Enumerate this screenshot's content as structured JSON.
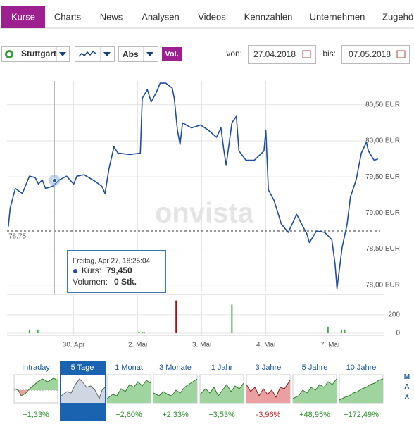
{
  "tabs": [
    "Kurse",
    "Charts",
    "News",
    "Analysen",
    "Videos",
    "Kennzahlen",
    "Unternehmen",
    "Zugehö"
  ],
  "toolbar": {
    "exchange": "Stuttgart",
    "scale": "Abs",
    "volume": "Vol.",
    "from_label": "von:",
    "from_date": "27.04.2018",
    "to_label": "bis:",
    "to_date": "07.05.2018"
  },
  "watermark": "onvista",
  "tooltip": {
    "time": "Freitag, Apr 27, 18:25:04",
    "price_label": "Kurs:",
    "price": {
      "value": 79.45,
      "label": "79,450"
    },
    "volume_label": "Volumen:",
    "volume": "0 Stk.",
    "x": 0.7
  },
  "chart_data": [
    {
      "type": "line",
      "color": "#1f4e9c",
      "x": [
        -0.02,
        0.01,
        0.09,
        0.2,
        0.31,
        0.4,
        0.45,
        0.51,
        0.56,
        0.67,
        0.78,
        0.89,
        1.0,
        1.05,
        1.16,
        1.33,
        1.44,
        1.49,
        1.55,
        1.63,
        1.69,
        1.88,
        2.04,
        2.07,
        2.15,
        2.21,
        2.29,
        2.35,
        2.44,
        2.54,
        2.57,
        2.62,
        2.66,
        2.7,
        2.84,
        2.98,
        3.1,
        3.23,
        3.3,
        3.34,
        3.38,
        3.47,
        3.54,
        3.58,
        3.69,
        3.82,
        3.97,
        4.0,
        4.04,
        4.13,
        4.24,
        4.35,
        4.48,
        4.64,
        4.68,
        4.79,
        4.92,
        5.03,
        5.08,
        5.11,
        5.19,
        5.27,
        5.32,
        5.41,
        5.49,
        5.57,
        5.6,
        5.69,
        5.75
      ],
      "values": [
        78.81,
        79.07,
        79.34,
        79.27,
        79.51,
        79.49,
        79.4,
        79.46,
        79.34,
        79.37,
        79.46,
        79.51,
        79.4,
        79.51,
        79.53,
        79.44,
        79.37,
        79.27,
        79.61,
        79.92,
        79.83,
        79.81,
        79.83,
        80.59,
        80.71,
        80.54,
        80.67,
        80.8,
        80.8,
        80.73,
        80.59,
        80.15,
        79.95,
        80.25,
        80.18,
        80.22,
        80.15,
        80.05,
        80.18,
        79.9,
        79.66,
        80.25,
        80.34,
        79.86,
        79.73,
        79.73,
        79.86,
        80.15,
        79.32,
        79.17,
        78.85,
        78.73,
        78.98,
        78.71,
        78.59,
        78.75,
        78.73,
        78.63,
        78.29,
        77.95,
        78.52,
        78.85,
        79.22,
        79.46,
        79.83,
        79.98,
        79.86,
        79.73,
        79.75
      ],
      "xlim": [
        -0.04,
        5.84
      ],
      "ylim": [
        77.9,
        80.83
      ],
      "yticks": [
        {
          "value": 78,
          "label": "78,00 EUR"
        },
        {
          "value": 78.5,
          "label": "78,50 EUR"
        },
        {
          "value": 79,
          "label": "79,00 EUR"
        },
        {
          "value": 79.5,
          "label": "79,50 EUR"
        },
        {
          "value": 80,
          "label": "80,00 EUR"
        },
        {
          "value": 80.5,
          "label": "80,50 EUR"
        }
      ],
      "reference_line": {
        "value": 78.75,
        "label": "78.75"
      },
      "grid": true
    },
    {
      "type": "bar",
      "x": [
        0.31,
        0.44,
        2.02,
        2.07,
        2.1,
        2.6,
        3.47,
        4.97,
        5.18,
        5.23
      ],
      "values": [
        40,
        40,
        8,
        8,
        8,
        355,
        310,
        70,
        30,
        40
      ],
      "colors": [
        "#3cb043",
        "#3cb043",
        "#3cb043",
        "#3cb043",
        "#3cb043",
        "#a31515",
        "#3cb043",
        "#3cb043",
        "#3cb043",
        "#3cb043"
      ],
      "xlim": [
        -0.04,
        5.84
      ],
      "ylim": [
        0,
        390
      ],
      "yticks": [
        0,
        200
      ],
      "xticks": [
        {
          "value": 1,
          "label": "30. Apr"
        },
        {
          "value": 2,
          "label": "2. Mai"
        },
        {
          "value": 3,
          "label": "3. Mai"
        },
        {
          "value": 4,
          "label": "4. Mai"
        },
        {
          "value": 5,
          "label": "7. Mai"
        }
      ],
      "grid": true
    }
  ],
  "periods": [
    {
      "label": "Intraday",
      "change": "+1,33%"
    },
    {
      "label": "5 Tage"
    },
    {
      "label": "1 Monat",
      "change": "+2,60%"
    },
    {
      "label": "3 Monate",
      "change": "+2,33%"
    },
    {
      "label": "1 Jahr",
      "change": "+3,53%"
    },
    {
      "label": "3 Jahre",
      "change": "-3,96%"
    },
    {
      "label": "5 Jahre",
      "change": "+48,95%"
    },
    {
      "label": "10 Jahre",
      "change": "+172,49%"
    }
  ],
  "max_label": "MAX"
}
